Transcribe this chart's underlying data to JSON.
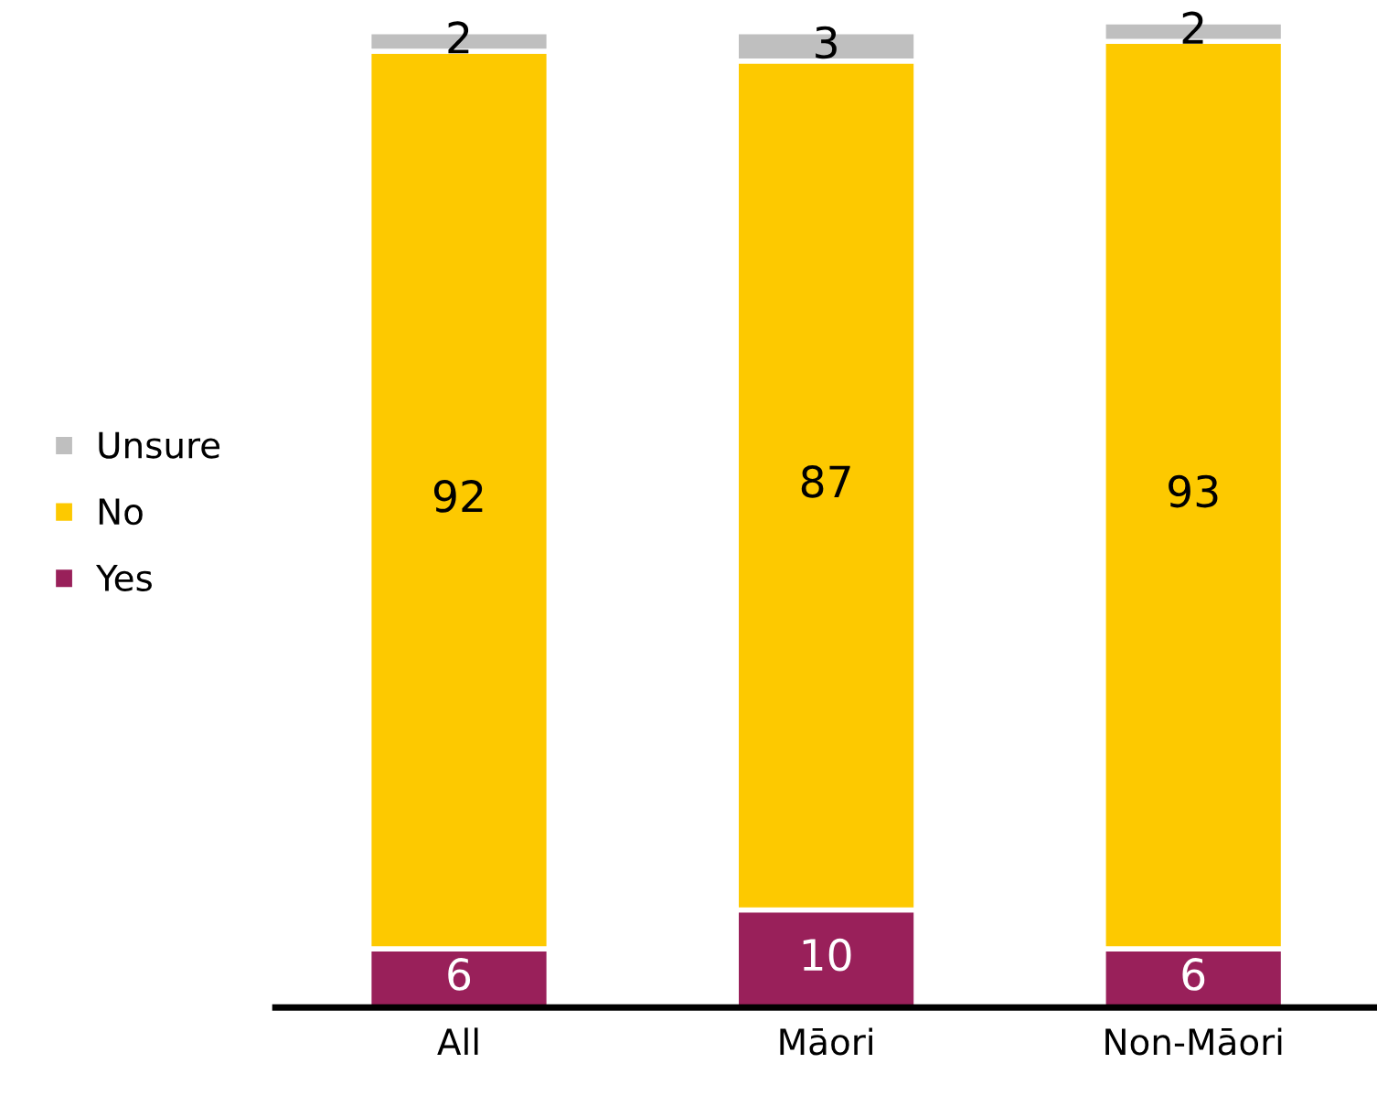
{
  "chart_data": {
    "type": "bar",
    "stacked": true,
    "data_labels": true,
    "legend": "left",
    "grid": false,
    "categories": [
      "All",
      "Māori",
      "Non-Māori"
    ],
    "series": [
      {
        "name": "Yes",
        "color": "#99205a",
        "values": [
          6,
          10,
          6
        ]
      },
      {
        "name": "No",
        "color": "#fdc900",
        "values": [
          92,
          87,
          93
        ]
      },
      {
        "name": "Unsure",
        "color": "#bfbfbf",
        "values": [
          2,
          3,
          2
        ]
      }
    ]
  }
}
